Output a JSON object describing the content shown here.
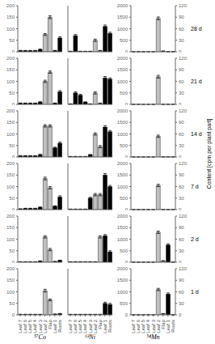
{
  "chart_data": [
    {
      "type": "bar",
      "xlabel": "⁵⁷Co",
      "categories": [
        "Leaf 7",
        "Leaf 6",
        "Leaf 5",
        "Leaf 4",
        "Leaf 3",
        "Leaf 2",
        "Flap",
        "Leaf 1",
        "Roots"
      ],
      "values": [
        2,
        2,
        2,
        2,
        2,
        105,
        65,
        3,
        5
      ],
      "errors": [
        0.5,
        0.5,
        0.5,
        0.5,
        0.5,
        6,
        4,
        0.5,
        1
      ],
      "colors": [
        "#000000",
        "#000000",
        "#000000",
        "#000000",
        "#000000",
        "#c0c0c0",
        "#c0c0c0",
        "#000000",
        "#000000"
      ],
      "ylim": [
        0,
        200
      ],
      "yticks": [
        0,
        50,
        100,
        150,
        200
      ]
    },
    {
      "type": "bar",
      "tick_labels": "y",
      "categories": [
        "Leaf 7",
        "Leaf 6",
        "Leaf 5",
        "Leaf 4",
        "Leaf 3",
        "Leaf 2",
        "Flap",
        "Leaf 1",
        "Roots"
      ],
      "values": [
        2,
        2,
        2,
        2,
        5,
        110,
        55,
        3,
        8
      ],
      "errors": [
        0.5,
        0.5,
        0.5,
        0.5,
        1,
        5,
        5,
        0.5,
        1
      ],
      "colors": [
        "#000000",
        "#000000",
        "#000000",
        "#000000",
        "#000000",
        "#c0c0c0",
        "#c0c0c0",
        "#000000",
        "#000000"
      ],
      "ylim": [
        0,
        200
      ],
      "yticks": [
        0,
        50,
        100,
        150,
        200
      ]
    },
    {
      "type": "bar",
      "tick_labels": "y",
      "categories": [
        "Leaf 7",
        "Leaf 6",
        "Leaf 5",
        "Leaf 4",
        "Leaf 3",
        "Leaf 2",
        "Flap",
        "Leaf 1",
        "Roots"
      ],
      "values": [
        3,
        5,
        5,
        5,
        10,
        135,
        95,
        15,
        55
      ],
      "errors": [
        0.5,
        1,
        1,
        1,
        2,
        6,
        5,
        2,
        5
      ],
      "colors": [
        "#000000",
        "#000000",
        "#000000",
        "#000000",
        "#000000",
        "#c0c0c0",
        "#c0c0c0",
        "#000000",
        "#000000"
      ],
      "ylim": [
        0,
        200
      ],
      "yticks": [
        0,
        50,
        100,
        150,
        200
      ]
    },
    {
      "type": "bar",
      "tick_labels": "y",
      "categories": [
        "Leaf 7",
        "Leaf 6",
        "Leaf 5",
        "Leaf 4",
        "Leaf 3",
        "Leaf 2",
        "Flap",
        "Leaf 1",
        "Roots"
      ],
      "values": [
        5,
        5,
        5,
        5,
        10,
        135,
        135,
        40,
        60
      ],
      "errors": [
        1,
        1,
        1,
        1,
        2,
        5,
        5,
        3,
        5
      ],
      "colors": [
        "#000000",
        "#000000",
        "#000000",
        "#000000",
        "#000000",
        "#c0c0c0",
        "#c0c0c0",
        "#000000",
        "#000000"
      ],
      "ylim": [
        0,
        200
      ],
      "yticks": [
        0,
        50,
        100,
        150,
        200
      ]
    },
    {
      "type": "bar",
      "tick_labels": "y",
      "categories": [
        "Leaf 7",
        "Leaf 6",
        "Leaf 5",
        "Leaf 4",
        "Leaf 3",
        "Leaf 2",
        "Flap",
        "Leaf 1",
        "Roots"
      ],
      "values": [
        5,
        5,
        5,
        5,
        10,
        100,
        140,
        5,
        55
      ],
      "errors": [
        1,
        1,
        1,
        1,
        2,
        5,
        5,
        1,
        5
      ],
      "colors": [
        "#000000",
        "#000000",
        "#000000",
        "#000000",
        "#000000",
        "#c0c0c0",
        "#c0c0c0",
        "#000000",
        "#000000"
      ],
      "ylim": [
        0,
        200
      ],
      "yticks": [
        0,
        50,
        100,
        150,
        200
      ]
    },
    {
      "type": "bar",
      "tick_labels": "y",
      "categories": [
        "Leaf 7",
        "Leaf 6",
        "Leaf 5",
        "Leaf 4",
        "Leaf 3",
        "Leaf 2",
        "Flap",
        "Leaf 1",
        "Roots"
      ],
      "values": [
        5,
        5,
        5,
        5,
        10,
        75,
        150,
        5,
        60
      ],
      "errors": [
        1,
        1,
        1,
        1,
        2,
        4,
        6,
        1,
        5
      ],
      "colors": [
        "#000000",
        "#000000",
        "#000000",
        "#000000",
        "#000000",
        "#c0c0c0",
        "#c0c0c0",
        "#000000",
        "#000000"
      ],
      "ylim": [
        0,
        200
      ],
      "yticks": [
        0,
        50,
        100,
        150,
        200
      ]
    },
    {
      "type": "bar",
      "xlabel": "⁶³Ni",
      "tick_labels": "x",
      "categories": [
        "Leaf 7",
        "Leaf 6",
        "Leaf 5",
        "Leaf 4",
        "Leaf 3",
        "Leaf 2",
        "Flap",
        "Leaf 1",
        "Roots"
      ],
      "values": [
        2,
        2,
        2,
        2,
        2,
        2,
        2,
        50,
        45
      ],
      "errors": [
        0.5,
        0.5,
        0.5,
        0.5,
        0.5,
        0.5,
        0.5,
        5,
        5
      ],
      "colors": [
        "#000000",
        "#000000",
        "#000000",
        "#000000",
        "#000000",
        "#c0c0c0",
        "#c0c0c0",
        "#000000",
        "#000000"
      ],
      "ylim": [
        0,
        200
      ],
      "yticks": [
        0,
        50,
        100,
        150,
        200
      ]
    },
    {
      "type": "bar",
      "tick_labels": false,
      "categories": [
        "Leaf 7",
        "Leaf 6",
        "Leaf 5",
        "Leaf 4",
        "Leaf 3",
        "Leaf 2",
        "Flap",
        "Leaf 1",
        "Roots"
      ],
      "values": [
        2,
        2,
        2,
        2,
        2,
        2,
        110,
        115,
        45
      ],
      "errors": [
        0.5,
        0.5,
        0.5,
        0.5,
        0.5,
        0.5,
        5,
        5,
        5
      ],
      "colors": [
        "#000000",
        "#000000",
        "#000000",
        "#000000",
        "#000000",
        "#c0c0c0",
        "#c0c0c0",
        "#000000",
        "#000000"
      ],
      "ylim": [
        0,
        200
      ],
      "yticks": [
        0,
        50,
        100,
        150,
        200
      ]
    },
    {
      "type": "bar",
      "tick_labels": false,
      "categories": [
        "Leaf 7",
        "Leaf 6",
        "Leaf 5",
        "Leaf 4",
        "Leaf 3",
        "Leaf 2",
        "Flap",
        "Leaf 1",
        "Roots"
      ],
      "values": [
        2,
        2,
        2,
        2,
        50,
        65,
        65,
        150,
        100
      ],
      "errors": [
        0.5,
        0.5,
        0.5,
        0.5,
        4,
        5,
        5,
        6,
        5
      ],
      "colors": [
        "#000000",
        "#000000",
        "#000000",
        "#000000",
        "#000000",
        "#c0c0c0",
        "#c0c0c0",
        "#000000",
        "#000000"
      ],
      "ylim": [
        0,
        200
      ],
      "yticks": [
        0,
        50,
        100,
        150,
        200
      ]
    },
    {
      "type": "bar",
      "tick_labels": false,
      "categories": [
        "Leaf 7",
        "Leaf 6",
        "Leaf 5",
        "Leaf 4",
        "Leaf 3",
        "Leaf 2",
        "Flap",
        "Leaf 1",
        "Roots"
      ],
      "values": [
        2,
        2,
        2,
        2,
        10,
        100,
        45,
        130,
        110
      ],
      "errors": [
        0.5,
        0.5,
        0.5,
        0.5,
        1,
        5,
        5,
        6,
        5
      ],
      "colors": [
        "#000000",
        "#000000",
        "#000000",
        "#000000",
        "#000000",
        "#c0c0c0",
        "#c0c0c0",
        "#000000",
        "#000000"
      ],
      "ylim": [
        0,
        200
      ],
      "yticks": [
        0,
        50,
        100,
        150,
        200
      ]
    },
    {
      "type": "bar",
      "tick_labels": false,
      "categories": [
        "Leaf 7",
        "Leaf 6",
        "Leaf 5",
        "Leaf 4",
        "Leaf 3",
        "Leaf 2",
        "Flap",
        "Leaf 1",
        "Roots"
      ],
      "values": [
        2,
        50,
        40,
        10,
        2,
        50,
        5,
        115,
        110
      ],
      "errors": [
        0.5,
        5,
        4,
        1,
        0.5,
        5,
        1,
        6,
        5
      ],
      "colors": [
        "#000000",
        "#000000",
        "#000000",
        "#000000",
        "#000000",
        "#c0c0c0",
        "#c0c0c0",
        "#000000",
        "#000000"
      ],
      "ylim": [
        0,
        200
      ],
      "yticks": [
        0,
        50,
        100,
        150,
        200
      ]
    },
    {
      "type": "bar",
      "tick_labels": false,
      "categories": [
        "Leaf 7",
        "Leaf 6",
        "Leaf 5",
        "Leaf 4",
        "Leaf 3",
        "Leaf 2",
        "Flap",
        "Leaf 1",
        "Roots"
      ],
      "values": [
        2,
        70,
        2,
        2,
        2,
        50,
        5,
        110,
        80
      ],
      "errors": [
        0.5,
        5,
        0.5,
        0.5,
        0.5,
        5,
        1,
        6,
        5
      ],
      "colors": [
        "#000000",
        "#000000",
        "#000000",
        "#000000",
        "#000000",
        "#c0c0c0",
        "#c0c0c0",
        "#000000",
        "#000000"
      ],
      "ylim": [
        0,
        200
      ],
      "yticks": [
        0,
        50,
        100,
        150,
        200
      ]
    },
    {
      "type": "bar",
      "xlabel": "⁵⁴Mn",
      "y2label": "Content [cpm per plant part]",
      "annotations": [
        "1 d"
      ],
      "categories": [
        "Leaf 7",
        "Leaf 6",
        "Leaf 5",
        "Leaf 4",
        "Leaf 3",
        "Leaf 2",
        "Flap",
        "Leaf 1",
        "Roots"
      ],
      "values": [
        2,
        2,
        2,
        2,
        2,
        1100,
        45,
        900,
        5
      ],
      "errors": [
        1,
        1,
        1,
        1,
        1,
        50,
        5,
        50,
        1
      ],
      "colors": [
        "#000000",
        "#000000",
        "#000000",
        "#000000",
        "#000000",
        "#c0c0c0",
        "#c0c0c0",
        "#000000",
        "#000000"
      ],
      "ylim": [
        0,
        2000
      ],
      "yticks": [
        0,
        500,
        1000,
        1500,
        2000
      ],
      "y2lim": [
        0,
        120
      ],
      "y2ticks": [
        0,
        30,
        60,
        90,
        120
      ]
    },
    {
      "type": "bar",
      "tick_labels": "y",
      "annotations": [
        "2 d"
      ],
      "categories": [
        "Leaf 7",
        "Leaf 6",
        "Leaf 5",
        "Leaf 4",
        "Leaf 3",
        "Leaf 2",
        "Flap",
        "Leaf 1",
        "Roots"
      ],
      "values": [
        2,
        2,
        2,
        2,
        2,
        1300,
        60,
        750,
        5
      ],
      "errors": [
        1,
        1,
        1,
        1,
        1,
        50,
        5,
        50,
        1
      ],
      "colors": [
        "#000000",
        "#000000",
        "#000000",
        "#000000",
        "#000000",
        "#c0c0c0",
        "#c0c0c0",
        "#000000",
        "#000000"
      ],
      "ylim": [
        0,
        2000
      ],
      "yticks": [
        0,
        500,
        1000,
        1500,
        2000
      ],
      "y2lim": [
        0,
        120
      ],
      "y2ticks": [
        0,
        30,
        60,
        90,
        120
      ]
    },
    {
      "type": "bar",
      "tick_labels": "y",
      "annotations": [
        "7 d"
      ],
      "categories": [
        "Leaf 7",
        "Leaf 6",
        "Leaf 5",
        "Leaf 4",
        "Leaf 3",
        "Leaf 2",
        "Flap",
        "Leaf 1",
        "Roots"
      ],
      "values": [
        2,
        2,
        2,
        2,
        2,
        1050,
        5,
        5,
        5
      ],
      "errors": [
        1,
        1,
        1,
        1,
        1,
        50,
        1,
        1,
        1
      ],
      "colors": [
        "#000000",
        "#000000",
        "#000000",
        "#000000",
        "#000000",
        "#c0c0c0",
        "#c0c0c0",
        "#000000",
        "#000000"
      ],
      "ylim": [
        0,
        2000
      ],
      "yticks": [
        0,
        500,
        1000,
        1500,
        2000
      ],
      "y2lim": [
        0,
        120
      ],
      "y2ticks": [
        0,
        30,
        60,
        90,
        120
      ]
    },
    {
      "type": "bar",
      "tick_labels": "y",
      "annotations": [
        "14 d"
      ],
      "categories": [
        "Leaf 7",
        "Leaf 6",
        "Leaf 5",
        "Leaf 4",
        "Leaf 3",
        "Leaf 2",
        "Flap",
        "Leaf 1",
        "Roots"
      ],
      "values": [
        2,
        2,
        2,
        2,
        2,
        900,
        5,
        5,
        5
      ],
      "errors": [
        1,
        1,
        1,
        1,
        1,
        50,
        1,
        1,
        1
      ],
      "colors": [
        "#000000",
        "#000000",
        "#000000",
        "#000000",
        "#000000",
        "#c0c0c0",
        "#c0c0c0",
        "#000000",
        "#000000"
      ],
      "ylim": [
        0,
        2000
      ],
      "yticks": [
        0,
        500,
        1000,
        1500,
        2000
      ],
      "y2lim": [
        0,
        120
      ],
      "y2ticks": [
        0,
        30,
        60,
        90,
        120
      ]
    },
    {
      "type": "bar",
      "tick_labels": "y",
      "annotations": [
        "21 d"
      ],
      "categories": [
        "Leaf 7",
        "Leaf 6",
        "Leaf 5",
        "Leaf 4",
        "Leaf 3",
        "Leaf 2",
        "Flap",
        "Leaf 1",
        "Roots"
      ],
      "values": [
        2,
        2,
        2,
        2,
        2,
        1200,
        5,
        5,
        5
      ],
      "errors": [
        1,
        1,
        1,
        1,
        1,
        60,
        1,
        1,
        1
      ],
      "colors": [
        "#000000",
        "#000000",
        "#000000",
        "#000000",
        "#000000",
        "#c0c0c0",
        "#c0c0c0",
        "#000000",
        "#000000"
      ],
      "ylim": [
        0,
        2000
      ],
      "yticks": [
        0,
        500,
        1000,
        1500,
        2000
      ],
      "y2lim": [
        0,
        120
      ],
      "y2ticks": [
        0,
        30,
        60,
        90,
        120
      ]
    },
    {
      "type": "bar",
      "tick_labels": "y",
      "annotations": [
        "28 d"
      ],
      "categories": [
        "Leaf 7",
        "Leaf 6",
        "Leaf 5",
        "Leaf 4",
        "Leaf 3",
        "Leaf 2",
        "Flap",
        "Leaf 1",
        "Roots"
      ],
      "values": [
        2,
        2,
        2,
        2,
        2,
        1450,
        30,
        5,
        5
      ],
      "errors": [
        1,
        1,
        1,
        1,
        1,
        60,
        5,
        1,
        1
      ],
      "colors": [
        "#000000",
        "#000000",
        "#000000",
        "#000000",
        "#000000",
        "#c0c0c0",
        "#c0c0c0",
        "#000000",
        "#000000"
      ],
      "ylim": [
        0,
        2000
      ],
      "yticks": [
        0,
        500,
        1000,
        1500,
        2000
      ],
      "y2lim": [
        0,
        120
      ],
      "y2ticks": [
        0,
        30,
        60,
        90,
        120
      ]
    }
  ]
}
